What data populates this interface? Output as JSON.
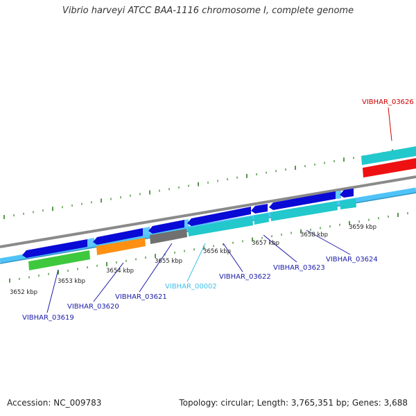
{
  "title": "Vibrio harveyi ATCC BAA-1116 chromosome I, complete genome",
  "footer": {
    "accession": "Accession: NC_009783",
    "stats": "Topology: circular; Length: 3,765,351 bp; Genes: 3,688"
  },
  "colors": {
    "tick": "#2e7d1f",
    "backbone_top": "#8a8a8a",
    "backbone_bottom": "#4fc3f7",
    "blue": "#0a0ad6",
    "light_blue": "#5fc8ff",
    "cyan": "#22c8cc",
    "green": "#3ec83e",
    "orange": "#ff9012",
    "gray": "#707070",
    "red": "#ee1111",
    "label_blue": "#1a1aa8",
    "label_cyan": "#40c0e8",
    "label_red": "#cc0000"
  },
  "scale": {
    "unit": "kbp",
    "ticks": [
      {
        "kbp": 3652,
        "label": "3652 kbp"
      },
      {
        "kbp": 3653,
        "label": "3653 kbp"
      },
      {
        "kbp": 3654,
        "label": "3654 kbp"
      },
      {
        "kbp": 3655,
        "label": "3655 kbp"
      },
      {
        "kbp": 3656,
        "label": "3656 kbp"
      },
      {
        "kbp": 3657,
        "label": "3657 kbp"
      },
      {
        "kbp": 3658,
        "label": "3658 kbp"
      },
      {
        "kbp": 3659,
        "label": "3659 kbp"
      }
    ]
  },
  "genes": [
    {
      "label": "VIBHAR_03619",
      "color": "label_blue"
    },
    {
      "label": "VIBHAR_03620",
      "color": "label_blue"
    },
    {
      "label": "VIBHAR_03621",
      "color": "label_blue"
    },
    {
      "label": "VIBHAR_00002",
      "color": "label_cyan"
    },
    {
      "label": "VIBHAR_03622",
      "color": "label_blue"
    },
    {
      "label": "VIBHAR_03623",
      "color": "label_blue"
    },
    {
      "label": "VIBHAR_03624",
      "color": "label_blue"
    },
    {
      "label": "VIBHAR_03626",
      "color": "label_red"
    }
  ]
}
